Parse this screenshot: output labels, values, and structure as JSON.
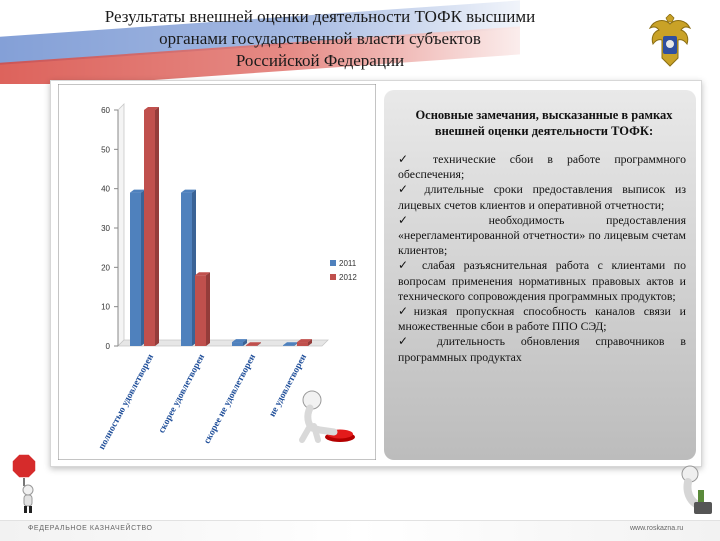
{
  "slide": {
    "title_lines": [
      "Результаты внешней оценки деятельности ТОФК высшими",
      "органами государственной власти субъектов",
      "Российской Федерации"
    ]
  },
  "notes": {
    "title_lines": [
      "Основные замечания, высказанные в рамках",
      "внешней оценки деятельности ТОФК:"
    ],
    "items": [
      "✓ технические сбои в работе программного обеспечения;",
      "✓ длительные сроки предоставления выписок из лицевых счетов клиентов и оперативной отчетности;",
      "✓ необходимость предоставления «нерегламентированной отчетности» по лицевым счетам клиентов;",
      "✓ слабая разъяснительная работа с клиентами по вопросам применения нормативных правовых актов и технического сопровождения программных продуктов;",
      "✓низкая пропускная способность каналов связи и множественные сбои в работе ППО СЭД;",
      "✓ длительность обновления справочников в программных продуктах"
    ]
  },
  "footer": {
    "left": "ФЕДЕРАЛЬНОЕ КАЗНАЧЕЙСТВО",
    "right": "www.roskazna.ru"
  },
  "colors": {
    "series_2011": "#4f81bd",
    "series_2012": "#c0504d"
  },
  "icons": [
    "russian-flag-banner",
    "double-headed-eagle-emblem",
    "figure-pressing-red-button-icon",
    "stop-sign-figure-icon",
    "thinking-figure-icon"
  ],
  "chart_data": {
    "type": "bar",
    "categories": [
      "полностью удовлетворен",
      "скорее удовлетворен",
      "скорее не удовлетворен",
      "не удовлетворен"
    ],
    "series": [
      {
        "name": "2011",
        "values": [
          39,
          39,
          1,
          0
        ]
      },
      {
        "name": "2012",
        "values": [
          60,
          18,
          0,
          1
        ]
      }
    ],
    "yticks": [
      0,
      10,
      20,
      30,
      40,
      50,
      60
    ],
    "ylim": [
      0,
      60
    ],
    "grid": false,
    "legend_position": "right",
    "bar_style": "3d"
  }
}
